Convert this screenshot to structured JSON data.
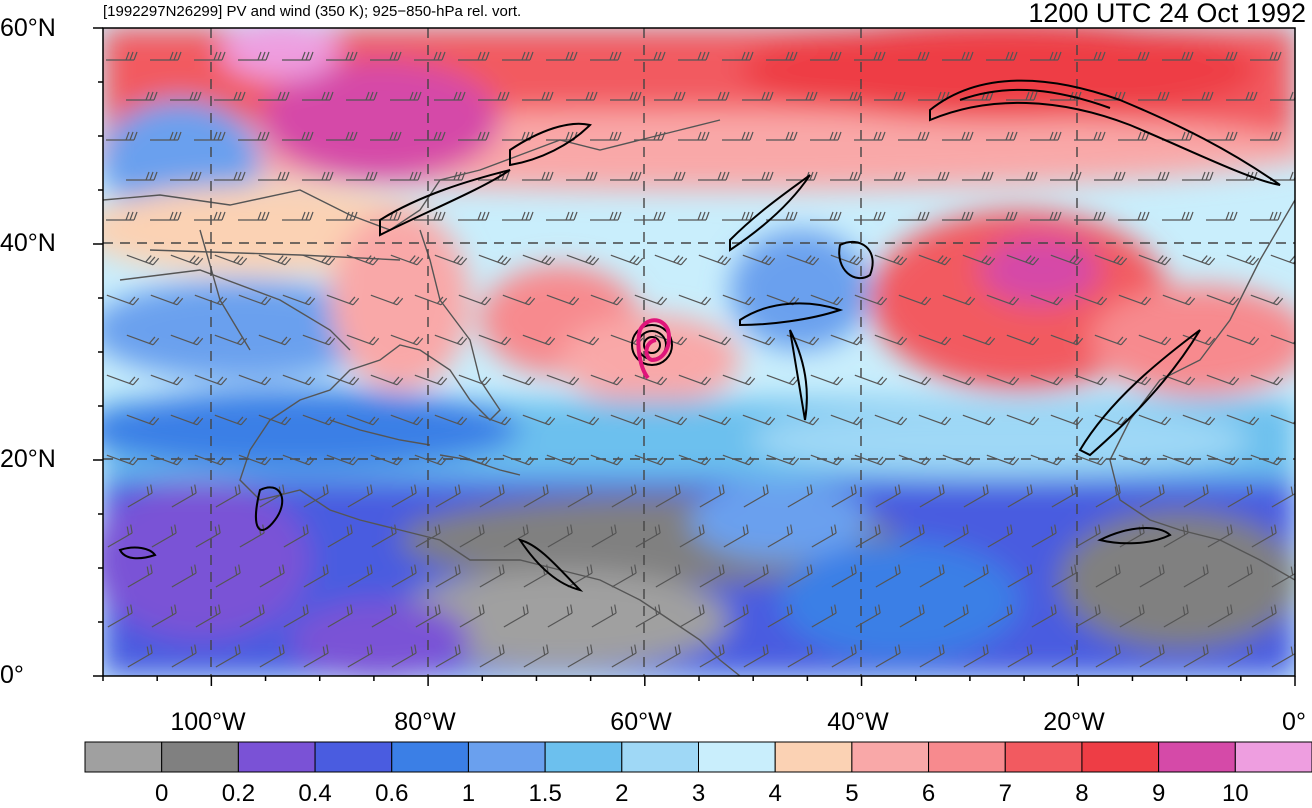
{
  "header": {
    "left_title": "[1992297N26299] PV and wind (350 K); 925−850-hPa rel. vort.",
    "right_title": "1200 UTC 24 Oct 1992"
  },
  "map": {
    "lat_labels": [
      "60°N",
      "40°N",
      "20°N",
      "0°"
    ],
    "lon_labels": [
      "100°W",
      "80°W",
      "60°W",
      "40°W",
      "20°W",
      "0°"
    ],
    "lat_range": [
      0,
      60
    ],
    "lon_range": [
      -110,
      0
    ],
    "storm_marker_color": "#e0157a"
  },
  "colorbar": {
    "labels": [
      "0",
      "0.2",
      "0.4",
      "0.6",
      "1",
      "1.5",
      "2",
      "3",
      "4",
      "5",
      "6",
      "7",
      "8",
      "9",
      "10"
    ],
    "colors": [
      "#a0a0a0",
      "#808080",
      "#7a52d6",
      "#4a5ce0",
      "#3b7fe6",
      "#6aa0ee",
      "#6cc0ee",
      "#9fd8f6",
      "#c9eefc",
      "#fbd2b4",
      "#f9a8a8",
      "#f78a8e",
      "#f25a60",
      "#ee3d45",
      "#d54aa8",
      "#ee9ee0"
    ]
  }
}
